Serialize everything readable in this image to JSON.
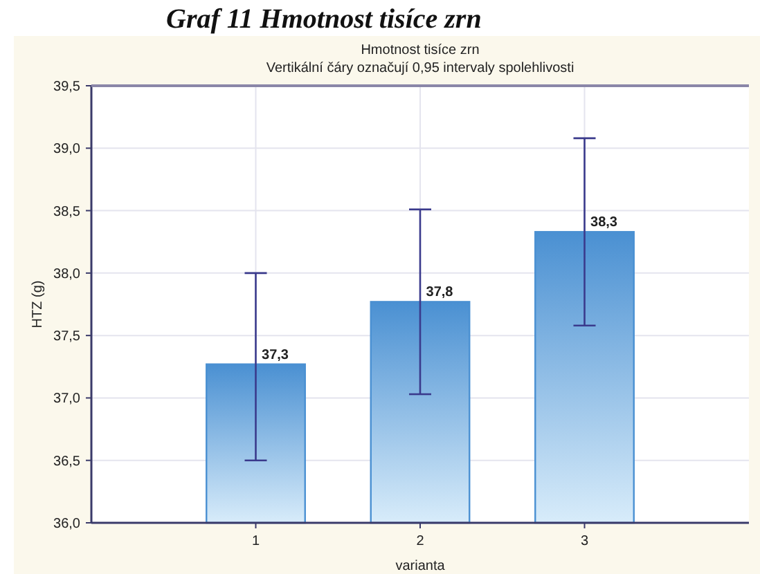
{
  "chart_data": {
    "type": "bar",
    "title": "Hmotnost tisíce zrn",
    "subtitle": "Vertikální čáry označují 0,95 intervaly spolehlivosti",
    "xlabel": "varianta",
    "ylabel": "HTZ (g)",
    "annotations": [
      "Graf 11 Hmotnost tisíce zrn"
    ],
    "categories": [
      "1",
      "2",
      "3"
    ],
    "values": [
      37.27,
      37.77,
      38.33
    ],
    "value_labels": [
      "37,3",
      "37,8",
      "38,3"
    ],
    "color": "#4a90d2",
    "errors": [
      [
        36.5,
        38.0
      ],
      [
        37.03,
        38.51
      ],
      [
        37.58,
        39.08
      ]
    ],
    "ylim": [
      36.0,
      39.5
    ],
    "yticks": [
      {
        "value": 36.0,
        "label": "36,0"
      },
      {
        "value": 36.5,
        "label": "36,5"
      },
      {
        "value": 37.0,
        "label": "37,0"
      },
      {
        "value": 37.5,
        "label": "37,5"
      },
      {
        "value": 38.0,
        "label": "38,0"
      },
      {
        "value": 38.5,
        "label": "38,5"
      },
      {
        "value": 39.0,
        "label": "39,0"
      },
      {
        "value": 39.5,
        "label": "39,5"
      }
    ],
    "grid": true
  }
}
